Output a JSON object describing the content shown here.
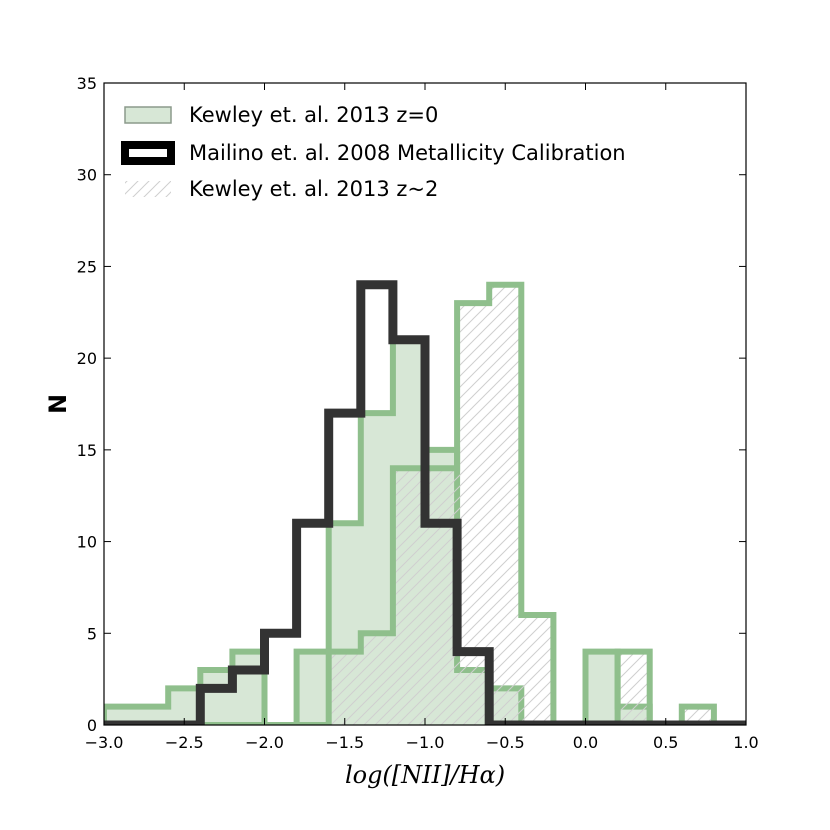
{
  "chart_data": {
    "type": "histogram",
    "title": "",
    "xlabel": "log([NII]/Hα)",
    "ylabel": "N",
    "xlim": [
      -3.0,
      1.0
    ],
    "ylim": [
      0,
      35
    ],
    "xticks": [
      -3.0,
      -2.5,
      -2.0,
      -1.5,
      -1.0,
      -0.5,
      0.0,
      0.5,
      1.0
    ],
    "xtick_labels": [
      "−3.0",
      "−2.5",
      "−2.0",
      "−1.5",
      "−1.0",
      "−0.5",
      "0.0",
      "0.5",
      "1.0"
    ],
    "yticks": [
      0,
      5,
      10,
      15,
      20,
      25,
      30,
      35
    ],
    "ytick_labels": [
      "0",
      "5",
      "10",
      "15",
      "20",
      "25",
      "30",
      "35"
    ],
    "legend_position": "top-left",
    "series": [
      {
        "name": "Kewley et. al. 2013 z=0",
        "style": "filled",
        "color": "#8fbf8c",
        "fill": "#d7e7d6",
        "bin_edges": [
          -3.0,
          -2.8,
          -2.6,
          -2.4,
          -2.2,
          -2.0,
          -1.8,
          -1.6,
          -1.4,
          -1.2,
          -1.0,
          -0.8,
          -0.6,
          -0.4,
          -0.2,
          0.0,
          0.2,
          0.4,
          0.6,
          0.8,
          1.0
        ],
        "values": [
          1,
          1,
          2,
          3,
          4,
          0,
          4,
          11,
          17,
          21,
          15,
          3,
          2,
          0,
          0,
          4,
          1,
          0,
          0,
          0
        ]
      },
      {
        "name": "Mailino et. al. 2008 Metallicity Calibration",
        "style": "step",
        "color": "#333333",
        "bin_edges": [
          -3.0,
          -2.8,
          -2.6,
          -2.4,
          -2.2,
          -2.0,
          -1.8,
          -1.6,
          -1.4,
          -1.2,
          -1.0,
          -0.8,
          -0.6,
          -0.4,
          -0.2,
          0.0,
          0.2,
          0.4,
          0.6,
          0.8,
          1.0
        ],
        "values": [
          0,
          0,
          0,
          2,
          3,
          5,
          11,
          17,
          24,
          21,
          11,
          4,
          0,
          0,
          0,
          0,
          0,
          0,
          0,
          0
        ]
      },
      {
        "name": "Kewley et. al. 2013 z~2",
        "style": "hatched",
        "color": "#8fbf8c",
        "bin_edges": [
          -3.0,
          -2.8,
          -2.6,
          -2.4,
          -2.2,
          -2.0,
          -1.8,
          -1.6,
          -1.4,
          -1.2,
          -1.0,
          -0.8,
          -0.6,
          -0.4,
          -0.2,
          0.0,
          0.2,
          0.4,
          0.6,
          0.8,
          1.0
        ],
        "values": [
          0,
          0,
          0,
          0,
          0,
          0,
          0,
          4,
          5,
          14,
          14,
          23,
          24,
          6,
          0,
          0,
          4,
          0,
          1,
          0
        ]
      }
    ]
  }
}
